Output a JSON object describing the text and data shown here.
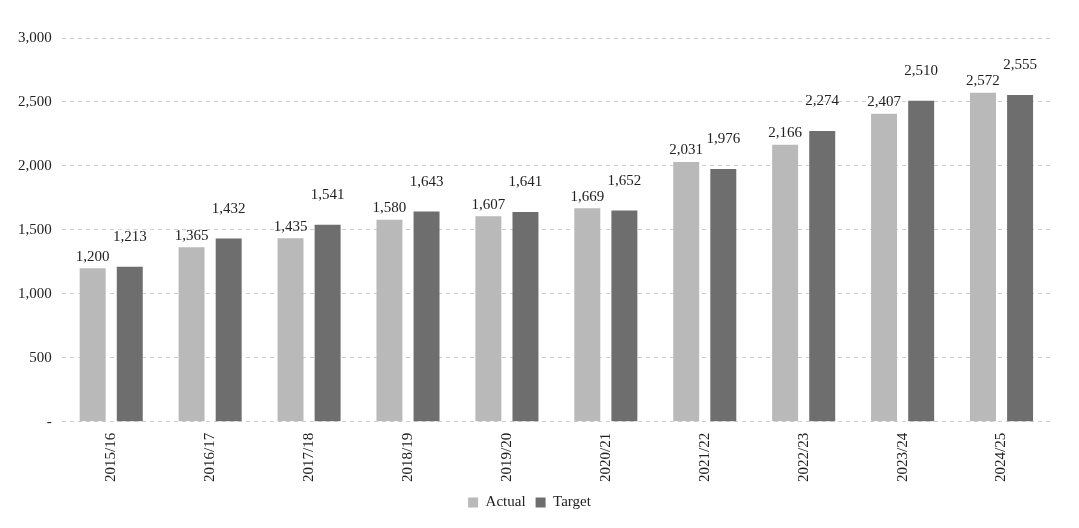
{
  "chart_data": {
    "type": "bar",
    "categories": [
      "2015/16",
      "2016/17",
      "2017/18",
      "2018/19",
      "2019/20",
      "2020/21",
      "2021/22",
      "2022/23",
      "2023/24",
      "2024/25"
    ],
    "series": [
      {
        "name": "Actual",
        "color": "#b9b9b9",
        "values": [
          1200,
          1365,
          1435,
          1580,
          1607,
          1669,
          2031,
          2166,
          2407,
          2572
        ],
        "value_labels": [
          "1,200",
          "1,365",
          "1,435",
          "1,580",
          "1,607",
          "1,669",
          "2,031",
          "2,166",
          "2,407",
          "2,572"
        ]
      },
      {
        "name": "Target",
        "color": "#6e6e6e",
        "values": [
          1213,
          1432,
          1541,
          1643,
          1641,
          1652,
          1976,
          2274,
          2510,
          2555
        ],
        "value_labels": [
          "1,213",
          "1,432",
          "1,541",
          "1,643",
          "1,641",
          "1,652",
          "1,976",
          "2,274",
          "2,510",
          "2,555"
        ]
      }
    ],
    "ylim": [
      0,
      3000
    ],
    "yticks": [
      {
        "value": 0,
        "label": "-"
      },
      500,
      {
        "value": 1000,
        "label": "1,000"
      },
      {
        "value": 1500,
        "label": "1,500"
      },
      {
        "value": 2000,
        "label": "2,000"
      },
      {
        "value": 2500,
        "label": "2,500"
      },
      {
        "value": 3000,
        "label": "3,000"
      }
    ],
    "grid": "y",
    "legend": "bottom"
  }
}
